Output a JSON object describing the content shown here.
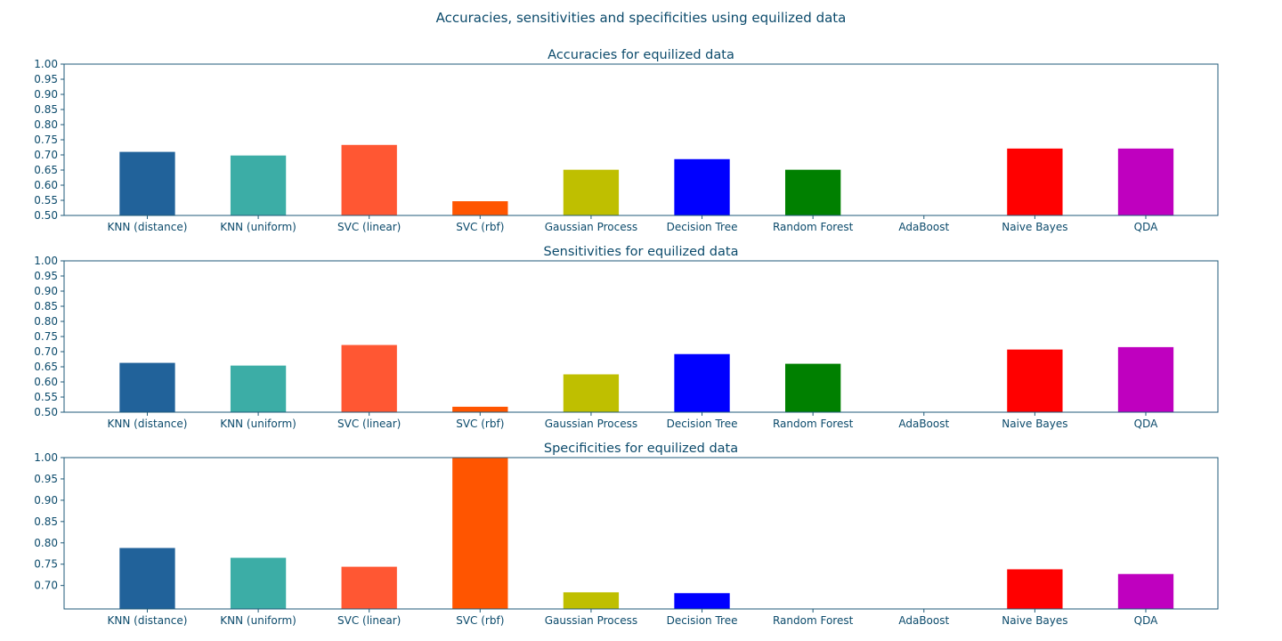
{
  "figure": {
    "suptitle": "Accuracies, sensitivities and specificities using equilized data"
  },
  "chart_data": [
    {
      "type": "bar",
      "title": "Accuracies for equilized data",
      "xlabel": "",
      "ylabel": "",
      "categories": [
        "KNN (distance)",
        "KNN (uniform)",
        "SVC (linear)",
        "SVC (rbf)",
        "Gaussian Process",
        "Decision Tree",
        "Random Forest",
        "AdaBoost",
        "Naive Bayes",
        "QDA"
      ],
      "values": [
        0.71,
        0.698,
        0.733,
        0.547,
        0.651,
        0.686,
        0.651,
        0.5,
        0.721,
        0.721
      ],
      "colors": [
        "#21629a",
        "#3cada6",
        "#ff5733",
        "#ff5500",
        "#bfbf00",
        "#0000ff",
        "#008000",
        "#ffffff",
        "#ff0000",
        "#bf00bf"
      ],
      "ylim": [
        0.5,
        1.0
      ],
      "yticks": [
        0.5,
        0.55,
        0.6,
        0.65,
        0.7,
        0.75,
        0.8,
        0.85,
        0.9,
        0.95,
        1.0
      ],
      "ytick_labels": [
        "0.50",
        "0.55",
        "0.60",
        "0.65",
        "0.70",
        "0.75",
        "0.80",
        "0.85",
        "0.90",
        "0.95",
        "1.00"
      ],
      "grid": false
    },
    {
      "type": "bar",
      "title": "Sensitivities for equilized data",
      "xlabel": "",
      "ylabel": "",
      "categories": [
        "KNN (distance)",
        "KNN (uniform)",
        "SVC (linear)",
        "SVC (rbf)",
        "Gaussian Process",
        "Decision Tree",
        "Random Forest",
        "AdaBoost",
        "Naive Bayes",
        "QDA"
      ],
      "values": [
        0.663,
        0.654,
        0.722,
        0.518,
        0.625,
        0.692,
        0.66,
        0.5,
        0.707,
        0.715
      ],
      "colors": [
        "#21629a",
        "#3cada6",
        "#ff5733",
        "#ff5500",
        "#bfbf00",
        "#0000ff",
        "#008000",
        "#ffffff",
        "#ff0000",
        "#bf00bf"
      ],
      "ylim": [
        0.5,
        1.0
      ],
      "yticks": [
        0.5,
        0.55,
        0.6,
        0.65,
        0.7,
        0.75,
        0.8,
        0.85,
        0.9,
        0.95,
        1.0
      ],
      "ytick_labels": [
        "0.50",
        "0.55",
        "0.60",
        "0.65",
        "0.70",
        "0.75",
        "0.80",
        "0.85",
        "0.90",
        "0.95",
        "1.00"
      ],
      "grid": false
    },
    {
      "type": "bar",
      "title": "Specificities for equilized data",
      "xlabel": "",
      "ylabel": "",
      "categories": [
        "KNN (distance)",
        "KNN (uniform)",
        "SVC (linear)",
        "SVC (rbf)",
        "Gaussian Process",
        "Decision Tree",
        "Random Forest",
        "AdaBoost",
        "Naive Bayes",
        "QDA"
      ],
      "values": [
        0.788,
        0.765,
        0.744,
        1.0,
        0.684,
        0.682,
        0.645,
        0.645,
        0.738,
        0.727
      ],
      "colors": [
        "#21629a",
        "#3cada6",
        "#ff5733",
        "#ff5500",
        "#bfbf00",
        "#0000ff",
        "#008000",
        "#ffffff",
        "#ff0000",
        "#bf00bf"
      ],
      "ylim": [
        0.645,
        1.0
      ],
      "yticks": [
        0.7,
        0.75,
        0.8,
        0.85,
        0.9,
        0.95,
        1.0
      ],
      "ytick_labels": [
        "0.70",
        "0.75",
        "0.80",
        "0.85",
        "0.90",
        "0.95",
        "1.00"
      ],
      "grid": false
    }
  ]
}
